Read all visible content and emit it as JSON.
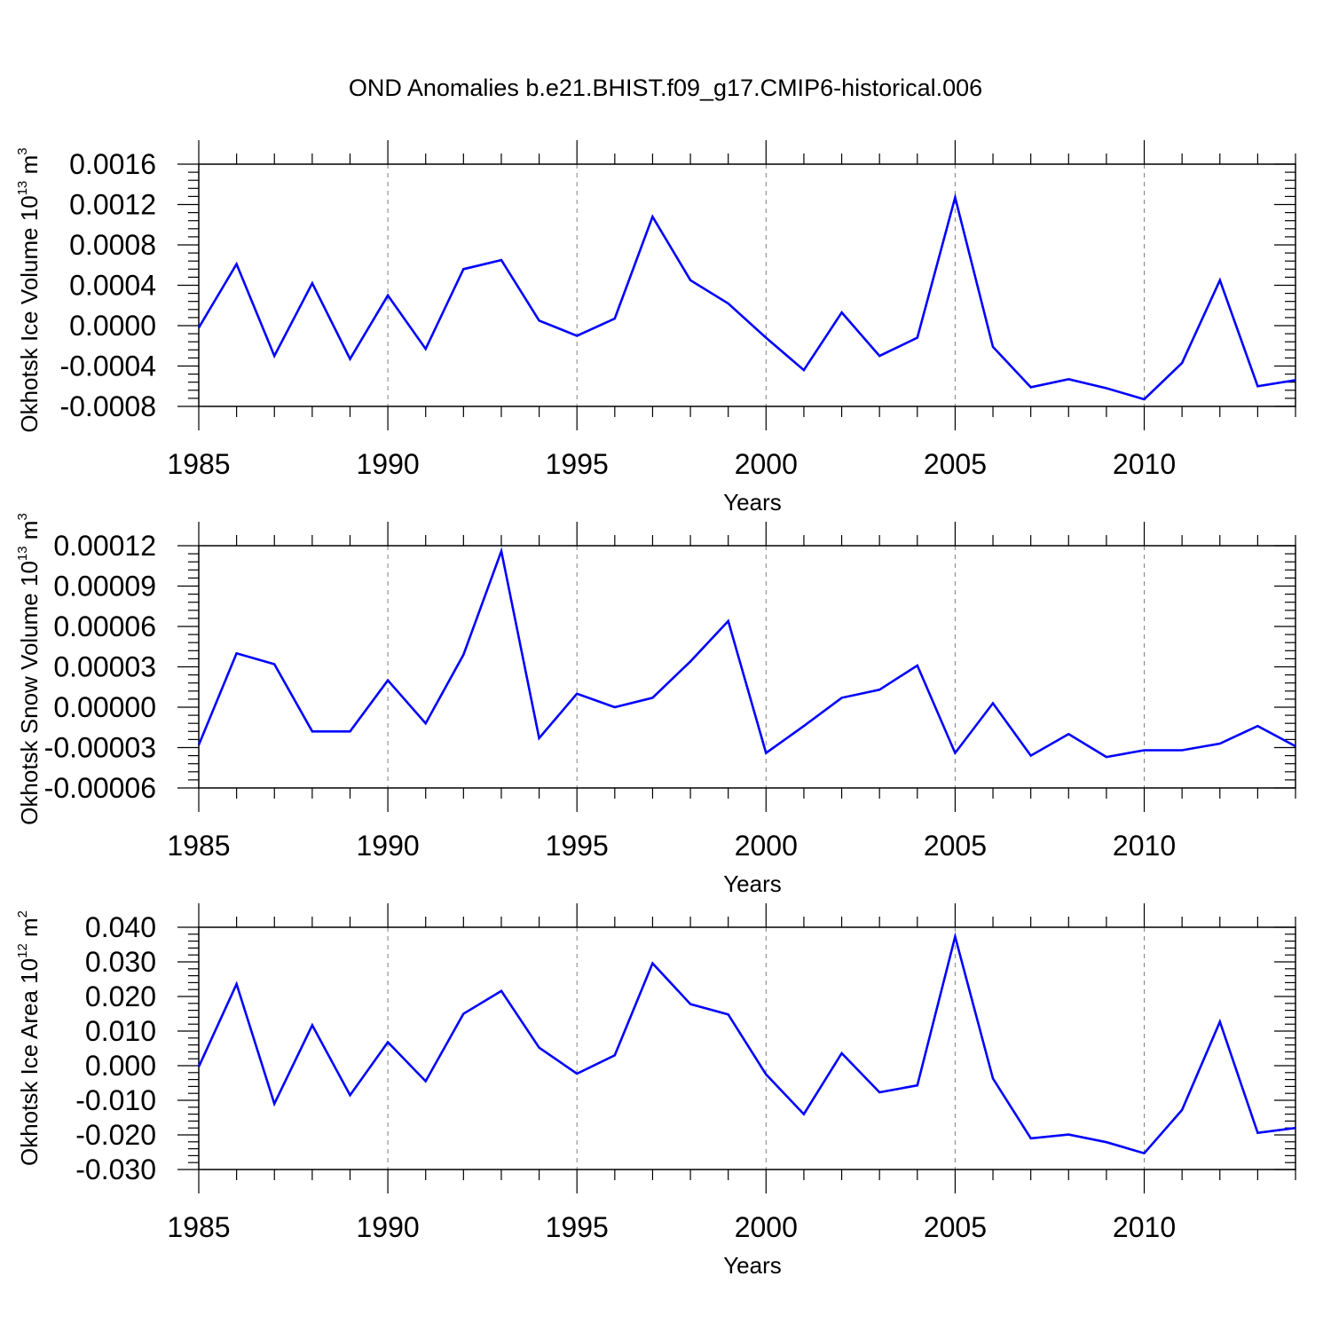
{
  "title": "OND Anomalies b.e21.BHIST.f09_g17.CMIP6-historical.006",
  "colors": {
    "line": "#0000ff",
    "axis": "#000000",
    "grid": "#808080"
  },
  "chart_data": [
    {
      "type": "line",
      "ylabel": "Okhotsk Ice Volume 10",
      "ylabel_exp": "13",
      "ylabel_unit": " m",
      "ylabel_unit_exp": "3",
      "xlabel": "Years",
      "xlim": [
        1985,
        2014
      ],
      "ylim": [
        -0.0008,
        0.0016
      ],
      "xticks": [
        1985,
        1990,
        1995,
        2000,
        2005,
        2010
      ],
      "xtick_labels": [
        "1985",
        "1990",
        "1995",
        "2000",
        "2005",
        "2010"
      ],
      "yticks": [
        -0.0008,
        -0.0004,
        0.0,
        0.0004,
        0.0008,
        0.0012,
        0.0016
      ],
      "ytick_labels": [
        "-0.0008",
        "-0.0004",
        "0.0000",
        "0.0004",
        "0.0008",
        "0.0012",
        "0.0016"
      ],
      "grid_x": true,
      "series": [
        {
          "x": [
            1985,
            1986,
            1987,
            1988,
            1989,
            1990,
            1991,
            1992,
            1993,
            1994,
            1995,
            1996,
            1997,
            1998,
            1999,
            2000,
            2001,
            2002,
            2003,
            2004,
            2005,
            2006,
            2007,
            2008,
            2009,
            2010,
            2011,
            2012,
            2013,
            2014
          ],
          "values": [
            -2e-05,
            0.00061,
            -0.0003,
            0.00042,
            -0.00033,
            0.0003,
            -0.00023,
            0.00056,
            0.00065,
            5e-05,
            -0.0001,
            7e-05,
            0.00108,
            0.00045,
            0.00022,
            -0.00012,
            -0.00044,
            0.00013,
            -0.0003,
            -0.00012,
            0.00127,
            -0.00021,
            -0.00061,
            -0.00053,
            -0.00062,
            -0.00073,
            -0.00037,
            0.00045,
            -0.0006,
            -0.00054
          ]
        }
      ]
    },
    {
      "type": "line",
      "ylabel": "Okhotsk Snow Volume 10",
      "ylabel_exp": "13",
      "ylabel_unit": " m",
      "ylabel_unit_exp": "3",
      "xlabel": "Years",
      "xlim": [
        1985,
        2014
      ],
      "ylim": [
        -6e-05,
        0.00012
      ],
      "xticks": [
        1985,
        1990,
        1995,
        2000,
        2005,
        2010
      ],
      "xtick_labels": [
        "1985",
        "1990",
        "1995",
        "2000",
        "2005",
        "2010"
      ],
      "yticks": [
        -6e-05,
        -3e-05,
        0.0,
        3e-05,
        6e-05,
        9e-05,
        0.00012
      ],
      "ytick_labels": [
        "-0.00006",
        "-0.00003",
        "0.00000",
        "0.00003",
        "0.00006",
        "0.00009",
        "0.00012"
      ],
      "grid_x": true,
      "series": [
        {
          "x": [
            1985,
            1986,
            1987,
            1988,
            1989,
            1990,
            1991,
            1992,
            1993,
            1994,
            1995,
            1996,
            1997,
            1998,
            1999,
            2000,
            2001,
            2002,
            2003,
            2004,
            2005,
            2006,
            2007,
            2008,
            2009,
            2010,
            2011,
            2012,
            2013,
            2014
          ],
          "values": [
            -2.8e-05,
            4e-05,
            3.2e-05,
            -1.8e-05,
            -1.8e-05,
            2e-05,
            -1.2e-05,
            3.9e-05,
            0.000116,
            -2.3e-05,
            1e-05,
            0.0,
            7e-06,
            3.4e-05,
            6.4e-05,
            -3.4e-05,
            -1.4e-05,
            7e-06,
            1.3e-05,
            3.1e-05,
            -3.4e-05,
            3e-06,
            -3.6e-05,
            -2e-05,
            -3.7e-05,
            -3.2e-05,
            -3.2e-05,
            -2.7e-05,
            -1.4e-05,
            -2.9e-05
          ]
        }
      ]
    },
    {
      "type": "line",
      "ylabel": "Okhotsk Ice Area 10",
      "ylabel_exp": "12",
      "ylabel_unit": " m",
      "ylabel_unit_exp": "2",
      "xlabel": "Years",
      "xlim": [
        1985,
        2014
      ],
      "ylim": [
        -0.03,
        0.04
      ],
      "xticks": [
        1985,
        1990,
        1995,
        2000,
        2005,
        2010
      ],
      "xtick_labels": [
        "1985",
        "1990",
        "1995",
        "2000",
        "2005",
        "2010"
      ],
      "yticks": [
        -0.03,
        -0.02,
        -0.01,
        0.0,
        0.01,
        0.02,
        0.03,
        0.04
      ],
      "ytick_labels": [
        "-0.030",
        "-0.020",
        "-0.010",
        "0.000",
        "0.010",
        "0.020",
        "0.030",
        "0.040"
      ],
      "grid_x": true,
      "series": [
        {
          "x": [
            1985,
            1986,
            1987,
            1988,
            1989,
            1990,
            1991,
            1992,
            1993,
            1994,
            1995,
            1996,
            1997,
            1998,
            1999,
            2000,
            2001,
            2002,
            2003,
            2004,
            2005,
            2006,
            2007,
            2008,
            2009,
            2010,
            2011,
            2012,
            2013,
            2014
          ],
          "values": [
            -0.0003,
            0.0236,
            -0.011,
            0.0117,
            -0.0085,
            0.0068,
            -0.0045,
            0.015,
            0.0216,
            0.0052,
            -0.0023,
            0.003,
            0.0296,
            0.0178,
            0.0148,
            -0.0025,
            -0.014,
            0.0036,
            -0.0077,
            -0.0057,
            0.0373,
            -0.0037,
            -0.021,
            -0.0199,
            -0.0221,
            -0.0253,
            -0.0128,
            0.0127,
            -0.0194,
            -0.018
          ]
        }
      ]
    }
  ]
}
